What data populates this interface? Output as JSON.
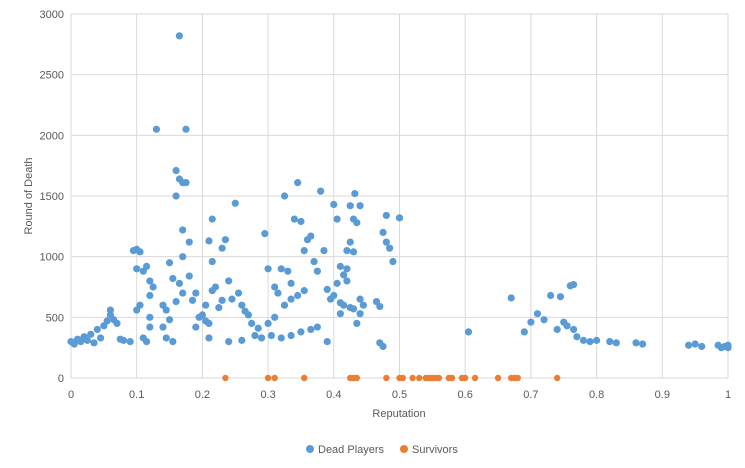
{
  "chart_data": {
    "type": "scatter",
    "xlabel": "Reputation",
    "ylabel": "Round of Death",
    "xlim": [
      0,
      1
    ],
    "ylim": [
      0,
      3000
    ],
    "x_ticks": [
      "0",
      "0.1",
      "0.2",
      "0.3",
      "0.4",
      "0.5",
      "0.6",
      "0.7",
      "0.8",
      "0.9",
      "1"
    ],
    "y_ticks": [
      "0",
      "500",
      "1000",
      "1500",
      "2000",
      "2500",
      "3000"
    ],
    "grid": "both",
    "legend_position": "bottom",
    "series": [
      {
        "name": "Dead Players",
        "color": "#5b9bd5",
        "points": [
          [
            0.0,
            300
          ],
          [
            0.005,
            280
          ],
          [
            0.01,
            320
          ],
          [
            0.015,
            300
          ],
          [
            0.02,
            340
          ],
          [
            0.025,
            310
          ],
          [
            0.03,
            360
          ],
          [
            0.035,
            290
          ],
          [
            0.04,
            400
          ],
          [
            0.045,
            330
          ],
          [
            0.05,
            430
          ],
          [
            0.055,
            470
          ],
          [
            0.06,
            520
          ],
          [
            0.06,
            560
          ],
          [
            0.065,
            480
          ],
          [
            0.07,
            450
          ],
          [
            0.075,
            320
          ],
          [
            0.08,
            310
          ],
          [
            0.09,
            300
          ],
          [
            0.095,
            1050
          ],
          [
            0.1,
            1060
          ],
          [
            0.105,
            1040
          ],
          [
            0.1,
            560
          ],
          [
            0.105,
            600
          ],
          [
            0.1,
            900
          ],
          [
            0.11,
            880
          ],
          [
            0.115,
            920
          ],
          [
            0.12,
            800
          ],
          [
            0.125,
            750
          ],
          [
            0.12,
            680
          ],
          [
            0.12,
            500
          ],
          [
            0.12,
            420
          ],
          [
            0.11,
            330
          ],
          [
            0.115,
            300
          ],
          [
            0.13,
            2050
          ],
          [
            0.14,
            600
          ],
          [
            0.145,
            560
          ],
          [
            0.15,
            950
          ],
          [
            0.155,
            820
          ],
          [
            0.16,
            1710
          ],
          [
            0.16,
            1500
          ],
          [
            0.165,
            1640
          ],
          [
            0.17,
            1610
          ],
          [
            0.175,
            1610
          ],
          [
            0.175,
            2050
          ],
          [
            0.165,
            2820
          ],
          [
            0.17,
            1220
          ],
          [
            0.17,
            1000
          ],
          [
            0.165,
            780
          ],
          [
            0.17,
            700
          ],
          [
            0.18,
            1120
          ],
          [
            0.18,
            840
          ],
          [
            0.185,
            640
          ],
          [
            0.19,
            700
          ],
          [
            0.195,
            500
          ],
          [
            0.19,
            420
          ],
          [
            0.16,
            630
          ],
          [
            0.15,
            480
          ],
          [
            0.14,
            420
          ],
          [
            0.145,
            330
          ],
          [
            0.155,
            300
          ],
          [
            0.2,
            520
          ],
          [
            0.205,
            470
          ],
          [
            0.21,
            450
          ],
          [
            0.215,
            1310
          ],
          [
            0.21,
            1130
          ],
          [
            0.215,
            960
          ],
          [
            0.22,
            750
          ],
          [
            0.225,
            580
          ],
          [
            0.23,
            1070
          ],
          [
            0.235,
            1140
          ],
          [
            0.24,
            800
          ],
          [
            0.245,
            650
          ],
          [
            0.25,
            1440
          ],
          [
            0.255,
            700
          ],
          [
            0.26,
            600
          ],
          [
            0.265,
            550
          ],
          [
            0.27,
            520
          ],
          [
            0.275,
            450
          ],
          [
            0.28,
            350
          ],
          [
            0.29,
            330
          ],
          [
            0.285,
            410
          ],
          [
            0.23,
            640
          ],
          [
            0.215,
            720
          ],
          [
            0.205,
            600
          ],
          [
            0.21,
            330
          ],
          [
            0.24,
            300
          ],
          [
            0.26,
            310
          ],
          [
            0.295,
            1190
          ],
          [
            0.3,
            900
          ],
          [
            0.31,
            750
          ],
          [
            0.315,
            700
          ],
          [
            0.32,
            900
          ],
          [
            0.325,
            1500
          ],
          [
            0.33,
            880
          ],
          [
            0.335,
            780
          ],
          [
            0.34,
            1310
          ],
          [
            0.345,
            1610
          ],
          [
            0.35,
            1290
          ],
          [
            0.355,
            1050
          ],
          [
            0.36,
            1140
          ],
          [
            0.365,
            1170
          ],
          [
            0.37,
            960
          ],
          [
            0.375,
            880
          ],
          [
            0.38,
            1540
          ],
          [
            0.385,
            1050
          ],
          [
            0.39,
            730
          ],
          [
            0.395,
            650
          ],
          [
            0.39,
            300
          ],
          [
            0.355,
            720
          ],
          [
            0.345,
            680
          ],
          [
            0.335,
            650
          ],
          [
            0.325,
            600
          ],
          [
            0.31,
            500
          ],
          [
            0.3,
            450
          ],
          [
            0.305,
            350
          ],
          [
            0.32,
            330
          ],
          [
            0.335,
            350
          ],
          [
            0.35,
            380
          ],
          [
            0.365,
            400
          ],
          [
            0.375,
            420
          ],
          [
            0.4,
            1430
          ],
          [
            0.405,
            1310
          ],
          [
            0.41,
            920
          ],
          [
            0.415,
            850
          ],
          [
            0.42,
            1050
          ],
          [
            0.425,
            1420
          ],
          [
            0.43,
            1310
          ],
          [
            0.432,
            1520
          ],
          [
            0.435,
            1280
          ],
          [
            0.44,
            1420
          ],
          [
            0.42,
            800
          ],
          [
            0.415,
            600
          ],
          [
            0.41,
            530
          ],
          [
            0.425,
            580
          ],
          [
            0.43,
            570
          ],
          [
            0.435,
            450
          ],
          [
            0.44,
            650
          ],
          [
            0.445,
            600
          ],
          [
            0.44,
            530
          ],
          [
            0.42,
            900
          ],
          [
            0.405,
            780
          ],
          [
            0.4,
            680
          ],
          [
            0.41,
            620
          ],
          [
            0.425,
            1120
          ],
          [
            0.43,
            1040
          ],
          [
            0.465,
            630
          ],
          [
            0.47,
            290
          ],
          [
            0.475,
            260
          ],
          [
            0.475,
            1200
          ],
          [
            0.48,
            1340
          ],
          [
            0.48,
            1120
          ],
          [
            0.485,
            1070
          ],
          [
            0.49,
            960
          ],
          [
            0.5,
            1320
          ],
          [
            0.47,
            590
          ],
          [
            0.605,
            380
          ],
          [
            0.67,
            660
          ],
          [
            0.69,
            380
          ],
          [
            0.7,
            460
          ],
          [
            0.71,
            530
          ],
          [
            0.72,
            480
          ],
          [
            0.73,
            680
          ],
          [
            0.74,
            400
          ],
          [
            0.745,
            670
          ],
          [
            0.75,
            460
          ],
          [
            0.76,
            760
          ],
          [
            0.765,
            770
          ],
          [
            0.755,
            430
          ],
          [
            0.765,
            400
          ],
          [
            0.77,
            340
          ],
          [
            0.78,
            310
          ],
          [
            0.79,
            300
          ],
          [
            0.8,
            310
          ],
          [
            0.82,
            300
          ],
          [
            0.83,
            290
          ],
          [
            0.86,
            290
          ],
          [
            0.87,
            280
          ],
          [
            0.94,
            270
          ],
          [
            0.95,
            280
          ],
          [
            0.96,
            260
          ],
          [
            0.985,
            270
          ],
          [
            0.99,
            250
          ],
          [
            0.995,
            260
          ],
          [
            1.0,
            250
          ],
          [
            1.0,
            270
          ]
        ]
      },
      {
        "name": "Survivors",
        "color": "#ed7d31",
        "points": [
          [
            0.235,
            0
          ],
          [
            0.3,
            0
          ],
          [
            0.31,
            0
          ],
          [
            0.355,
            0
          ],
          [
            0.425,
            0
          ],
          [
            0.43,
            0
          ],
          [
            0.435,
            0
          ],
          [
            0.48,
            0
          ],
          [
            0.5,
            0
          ],
          [
            0.505,
            0
          ],
          [
            0.52,
            0
          ],
          [
            0.53,
            0
          ],
          [
            0.54,
            0
          ],
          [
            0.545,
            0
          ],
          [
            0.55,
            0
          ],
          [
            0.555,
            0
          ],
          [
            0.56,
            0
          ],
          [
            0.575,
            0
          ],
          [
            0.58,
            0
          ],
          [
            0.595,
            0
          ],
          [
            0.6,
            0
          ],
          [
            0.615,
            0
          ],
          [
            0.65,
            0
          ],
          [
            0.67,
            0
          ],
          [
            0.675,
            0
          ],
          [
            0.68,
            0
          ],
          [
            0.74,
            0
          ]
        ]
      }
    ]
  }
}
